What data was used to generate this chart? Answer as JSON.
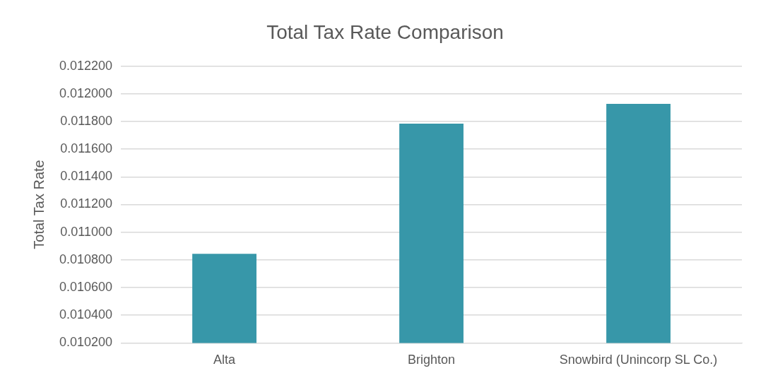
{
  "chart_data": {
    "type": "bar",
    "title": "Total Tax Rate Comparison",
    "ylabel": "Total Tax Rate",
    "categories": [
      "Alta",
      "Brighton",
      "Snowbird (Unincorp SL Co.)"
    ],
    "values": [
      0.010844,
      0.011784,
      0.011928
    ],
    "color": "#3797a9",
    "ylim": [
      0.0102,
      0.0122
    ],
    "yticks": [
      {
        "value": 0.0102,
        "label": "0.010200"
      },
      {
        "value": 0.0104,
        "label": "0.010400"
      },
      {
        "value": 0.0106,
        "label": "0.010600"
      },
      {
        "value": 0.0108,
        "label": "0.010800"
      },
      {
        "value": 0.011,
        "label": "0.011000"
      },
      {
        "value": 0.0112,
        "label": "0.011200"
      },
      {
        "value": 0.0114,
        "label": "0.011400"
      },
      {
        "value": 0.0116,
        "label": "0.011600"
      },
      {
        "value": 0.0118,
        "label": "0.011800"
      },
      {
        "value": 0.012,
        "label": "0.012000"
      },
      {
        "value": 0.0122,
        "label": "0.012200"
      }
    ],
    "grid": "y",
    "legend": false
  }
}
